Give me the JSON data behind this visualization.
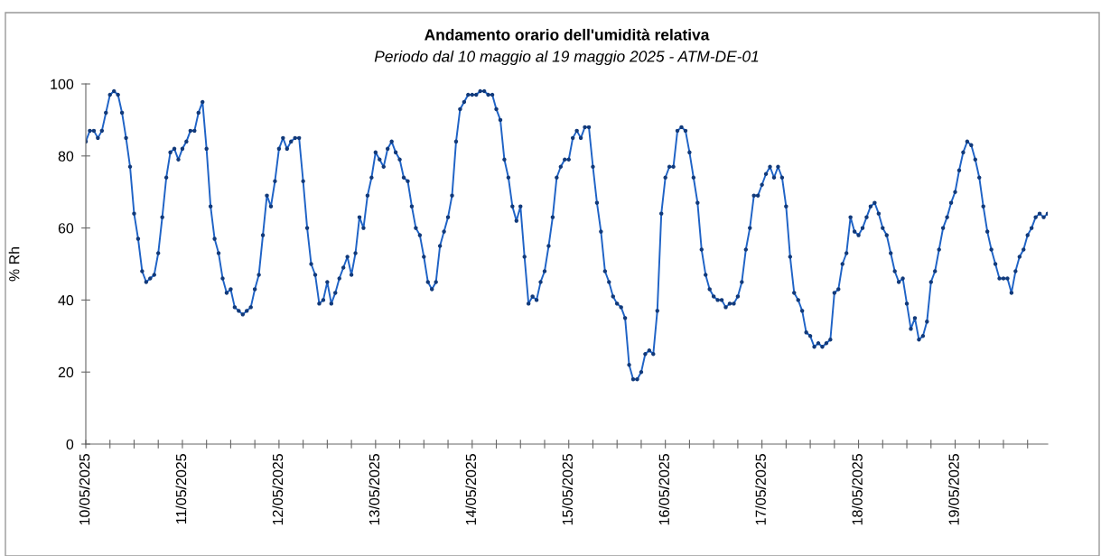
{
  "chart_data": {
    "type": "line",
    "title": "Andamento orario dell'umidità relativa",
    "subtitle": "Periodo dal 10 maggio al 19 maggio 2025 - ATM-DE-01",
    "ylabel": "% Rh",
    "x": [
      "2025-05-10T00:00",
      "2025-05-10T01:00",
      "2025-05-10T02:00",
      "2025-05-10T03:00",
      "2025-05-10T04:00",
      "2025-05-10T05:00",
      "2025-05-10T06:00",
      "2025-05-10T07:00",
      "2025-05-10T08:00",
      "2025-05-10T09:00",
      "2025-05-10T10:00",
      "2025-05-10T11:00",
      "2025-05-10T12:00",
      "2025-05-10T13:00",
      "2025-05-10T14:00",
      "2025-05-10T15:00",
      "2025-05-10T16:00",
      "2025-05-10T17:00",
      "2025-05-10T18:00",
      "2025-05-10T19:00",
      "2025-05-10T20:00",
      "2025-05-10T21:00",
      "2025-05-10T22:00",
      "2025-05-10T23:00",
      "2025-05-11T00:00",
      "2025-05-11T01:00",
      "2025-05-11T02:00",
      "2025-05-11T03:00",
      "2025-05-11T04:00",
      "2025-05-11T05:00",
      "2025-05-11T06:00",
      "2025-05-11T07:00",
      "2025-05-11T08:00",
      "2025-05-11T09:00",
      "2025-05-11T10:00",
      "2025-05-11T11:00",
      "2025-05-11T12:00",
      "2025-05-11T13:00",
      "2025-05-11T14:00",
      "2025-05-11T15:00",
      "2025-05-11T16:00",
      "2025-05-11T17:00",
      "2025-05-11T18:00",
      "2025-05-11T19:00",
      "2025-05-11T20:00",
      "2025-05-11T21:00",
      "2025-05-11T22:00",
      "2025-05-11T23:00",
      "2025-05-12T00:00",
      "2025-05-12T01:00",
      "2025-05-12T02:00",
      "2025-05-12T03:00",
      "2025-05-12T04:00",
      "2025-05-12T05:00",
      "2025-05-12T06:00",
      "2025-05-12T07:00",
      "2025-05-12T08:00",
      "2025-05-12T09:00",
      "2025-05-12T10:00",
      "2025-05-12T11:00",
      "2025-05-12T12:00",
      "2025-05-12T13:00",
      "2025-05-12T14:00",
      "2025-05-12T15:00",
      "2025-05-12T16:00",
      "2025-05-12T17:00",
      "2025-05-12T18:00",
      "2025-05-12T19:00",
      "2025-05-12T20:00",
      "2025-05-12T21:00",
      "2025-05-12T22:00",
      "2025-05-12T23:00",
      "2025-05-13T00:00",
      "2025-05-13T01:00",
      "2025-05-13T02:00",
      "2025-05-13T03:00",
      "2025-05-13T04:00",
      "2025-05-13T05:00",
      "2025-05-13T06:00",
      "2025-05-13T07:00",
      "2025-05-13T08:00",
      "2025-05-13T09:00",
      "2025-05-13T10:00",
      "2025-05-13T11:00",
      "2025-05-13T12:00",
      "2025-05-13T13:00",
      "2025-05-13T14:00",
      "2025-05-13T15:00",
      "2025-05-13T16:00",
      "2025-05-13T17:00",
      "2025-05-13T18:00",
      "2025-05-13T19:00",
      "2025-05-13T20:00",
      "2025-05-13T21:00",
      "2025-05-13T22:00",
      "2025-05-13T23:00",
      "2025-05-14T00:00",
      "2025-05-14T01:00",
      "2025-05-14T02:00",
      "2025-05-14T03:00",
      "2025-05-14T04:00",
      "2025-05-14T05:00",
      "2025-05-14T06:00",
      "2025-05-14T07:00",
      "2025-05-14T08:00",
      "2025-05-14T09:00",
      "2025-05-14T10:00",
      "2025-05-14T11:00",
      "2025-05-14T12:00",
      "2025-05-14T13:00",
      "2025-05-14T14:00",
      "2025-05-14T15:00",
      "2025-05-14T16:00",
      "2025-05-14T17:00",
      "2025-05-14T18:00",
      "2025-05-14T19:00",
      "2025-05-14T20:00",
      "2025-05-14T21:00",
      "2025-05-14T22:00",
      "2025-05-14T23:00",
      "2025-05-15T00:00",
      "2025-05-15T01:00",
      "2025-05-15T02:00",
      "2025-05-15T03:00",
      "2025-05-15T04:00",
      "2025-05-15T05:00",
      "2025-05-15T06:00",
      "2025-05-15T07:00",
      "2025-05-15T08:00",
      "2025-05-15T09:00",
      "2025-05-15T10:00",
      "2025-05-15T11:00",
      "2025-05-15T12:00",
      "2025-05-15T13:00",
      "2025-05-15T14:00",
      "2025-05-15T15:00",
      "2025-05-15T16:00",
      "2025-05-15T17:00",
      "2025-05-15T18:00",
      "2025-05-15T19:00",
      "2025-05-15T20:00",
      "2025-05-15T21:00",
      "2025-05-15T22:00",
      "2025-05-15T23:00",
      "2025-05-16T00:00",
      "2025-05-16T01:00",
      "2025-05-16T02:00",
      "2025-05-16T03:00",
      "2025-05-16T04:00",
      "2025-05-16T05:00",
      "2025-05-16T06:00",
      "2025-05-16T07:00",
      "2025-05-16T08:00",
      "2025-05-16T09:00",
      "2025-05-16T10:00",
      "2025-05-16T11:00",
      "2025-05-16T12:00",
      "2025-05-16T13:00",
      "2025-05-16T14:00",
      "2025-05-16T15:00",
      "2025-05-16T16:00",
      "2025-05-16T17:00",
      "2025-05-16T18:00",
      "2025-05-16T19:00",
      "2025-05-16T20:00",
      "2025-05-16T21:00",
      "2025-05-16T22:00",
      "2025-05-16T23:00",
      "2025-05-17T00:00",
      "2025-05-17T01:00",
      "2025-05-17T02:00",
      "2025-05-17T03:00",
      "2025-05-17T04:00",
      "2025-05-17T05:00",
      "2025-05-17T06:00",
      "2025-05-17T07:00",
      "2025-05-17T08:00",
      "2025-05-17T09:00",
      "2025-05-17T10:00",
      "2025-05-17T11:00",
      "2025-05-17T12:00",
      "2025-05-17T13:00",
      "2025-05-17T14:00",
      "2025-05-17T15:00",
      "2025-05-17T16:00",
      "2025-05-17T17:00",
      "2025-05-17T18:00",
      "2025-05-17T19:00",
      "2025-05-17T20:00",
      "2025-05-17T21:00",
      "2025-05-17T22:00",
      "2025-05-17T23:00",
      "2025-05-18T00:00",
      "2025-05-18T01:00",
      "2025-05-18T02:00",
      "2025-05-18T03:00",
      "2025-05-18T04:00",
      "2025-05-18T05:00",
      "2025-05-18T06:00",
      "2025-05-18T07:00",
      "2025-05-18T08:00",
      "2025-05-18T09:00",
      "2025-05-18T10:00",
      "2025-05-18T11:00",
      "2025-05-18T12:00",
      "2025-05-18T13:00",
      "2025-05-18T14:00",
      "2025-05-18T15:00",
      "2025-05-18T16:00",
      "2025-05-18T17:00",
      "2025-05-18T18:00",
      "2025-05-18T19:00",
      "2025-05-18T20:00",
      "2025-05-18T21:00",
      "2025-05-18T22:00",
      "2025-05-18T23:00",
      "2025-05-19T00:00",
      "2025-05-19T01:00",
      "2025-05-19T02:00",
      "2025-05-19T03:00",
      "2025-05-19T04:00",
      "2025-05-19T05:00",
      "2025-05-19T06:00",
      "2025-05-19T07:00",
      "2025-05-19T08:00",
      "2025-05-19T09:00",
      "2025-05-19T10:00",
      "2025-05-19T11:00",
      "2025-05-19T12:00",
      "2025-05-19T13:00",
      "2025-05-19T14:00",
      "2025-05-19T15:00",
      "2025-05-19T16:00",
      "2025-05-19T17:00",
      "2025-05-19T18:00",
      "2025-05-19T19:00",
      "2025-05-19T20:00",
      "2025-05-19T21:00",
      "2025-05-19T22:00",
      "2025-05-19T23:00"
    ],
    "series": [
      {
        "color": "#1f63c6",
        "values": [
          84,
          87,
          87,
          85,
          87,
          92,
          97,
          98,
          97,
          92,
          85,
          77,
          64,
          57,
          48,
          45,
          46,
          47,
          53,
          63,
          74,
          81,
          82,
          79,
          82,
          84,
          87,
          87,
          92,
          95,
          82,
          66,
          57,
          53,
          46,
          42,
          43,
          38,
          37,
          36,
          37,
          38,
          43,
          47,
          58,
          69,
          66,
          73,
          82,
          85,
          82,
          84,
          85,
          85,
          73,
          60,
          50,
          47,
          39,
          40,
          45,
          39,
          42,
          46,
          49,
          52,
          47,
          53,
          63,
          60,
          69,
          74,
          81,
          79,
          77,
          82,
          84,
          81,
          79,
          74,
          73,
          66,
          60,
          58,
          52,
          45,
          43,
          45,
          55,
          59,
          63,
          69,
          84,
          93,
          95,
          97,
          97,
          97,
          98,
          98,
          97,
          97,
          93,
          90,
          79,
          74,
          66,
          62,
          66,
          52,
          39,
          41,
          40,
          45,
          48,
          55,
          63,
          74,
          77,
          79,
          79,
          85,
          87,
          85,
          88,
          88,
          77,
          67,
          59,
          48,
          45,
          41,
          39,
          38,
          35,
          22,
          18,
          18,
          20,
          25,
          26,
          25,
          37,
          64,
          74,
          77,
          77,
          87,
          88,
          87,
          81,
          74,
          67,
          54,
          47,
          43,
          41,
          40,
          40,
          38,
          39,
          39,
          41,
          45,
          54,
          60,
          69,
          69,
          72,
          75,
          77,
          74,
          77,
          74,
          66,
          52,
          42,
          40,
          37,
          31,
          30,
          27,
          28,
          27,
          28,
          29,
          42,
          43,
          50,
          53,
          63,
          59,
          58,
          60,
          63,
          66,
          67,
          64,
          60,
          58,
          53,
          48,
          45,
          46,
          39,
          32,
          35,
          29,
          30,
          34,
          45,
          48,
          54,
          60,
          63,
          67,
          70,
          76,
          81,
          84,
          83,
          79,
          74,
          66,
          59,
          54,
          50,
          46,
          46,
          46,
          42,
          48,
          52,
          54,
          58,
          60,
          63,
          64,
          63,
          64
        ]
      }
    ],
    "xlim": [
      "2025-05-10T00:00",
      "2025-05-19T23:00"
    ],
    "xticks": [
      {
        "value": "2025-05-10T00:00",
        "label": "10/05/2025"
      },
      {
        "value": "2025-05-10T06:00",
        "label": null
      },
      {
        "value": "2025-05-10T12:00",
        "label": null
      },
      {
        "value": "2025-05-10T18:00",
        "label": null
      },
      {
        "value": "2025-05-11T00:00",
        "label": "11/05/2025"
      },
      {
        "value": "2025-05-11T06:00",
        "label": null
      },
      {
        "value": "2025-05-11T12:00",
        "label": null
      },
      {
        "value": "2025-05-11T18:00",
        "label": null
      },
      {
        "value": "2025-05-12T00:00",
        "label": "12/05/2025"
      },
      {
        "value": "2025-05-12T06:00",
        "label": null
      },
      {
        "value": "2025-05-12T12:00",
        "label": null
      },
      {
        "value": "2025-05-12T18:00",
        "label": null
      },
      {
        "value": "2025-05-13T00:00",
        "label": "13/05/2025"
      },
      {
        "value": "2025-05-13T06:00",
        "label": null
      },
      {
        "value": "2025-05-13T12:00",
        "label": null
      },
      {
        "value": "2025-05-13T18:00",
        "label": null
      },
      {
        "value": "2025-05-14T00:00",
        "label": "14/05/2025"
      },
      {
        "value": "2025-05-14T06:00",
        "label": null
      },
      {
        "value": "2025-05-14T12:00",
        "label": null
      },
      {
        "value": "2025-05-14T18:00",
        "label": null
      },
      {
        "value": "2025-05-15T00:00",
        "label": "15/05/2025"
      },
      {
        "value": "2025-05-15T06:00",
        "label": null
      },
      {
        "value": "2025-05-15T12:00",
        "label": null
      },
      {
        "value": "2025-05-15T18:00",
        "label": null
      },
      {
        "value": "2025-05-16T00:00",
        "label": "16/05/2025"
      },
      {
        "value": "2025-05-16T06:00",
        "label": null
      },
      {
        "value": "2025-05-16T12:00",
        "label": null
      },
      {
        "value": "2025-05-16T18:00",
        "label": null
      },
      {
        "value": "2025-05-17T00:00",
        "label": "17/05/2025"
      },
      {
        "value": "2025-05-17T06:00",
        "label": null
      },
      {
        "value": "2025-05-17T12:00",
        "label": null
      },
      {
        "value": "2025-05-17T18:00",
        "label": null
      },
      {
        "value": "2025-05-18T00:00",
        "label": "18/05/2025"
      },
      {
        "value": "2025-05-18T06:00",
        "label": null
      },
      {
        "value": "2025-05-18T12:00",
        "label": null
      },
      {
        "value": "2025-05-18T18:00",
        "label": null
      },
      {
        "value": "2025-05-19T00:00",
        "label": "19/05/2025"
      },
      {
        "value": "2025-05-19T06:00",
        "label": null
      },
      {
        "value": "2025-05-19T12:00",
        "label": null
      },
      {
        "value": "2025-05-19T18:00",
        "label": null
      }
    ],
    "ylim": [
      0,
      100
    ],
    "yticks": [
      0,
      20,
      40,
      60,
      80,
      100
    ],
    "grid": false,
    "legend": false,
    "marker": "circle",
    "line_style": "solid"
  }
}
